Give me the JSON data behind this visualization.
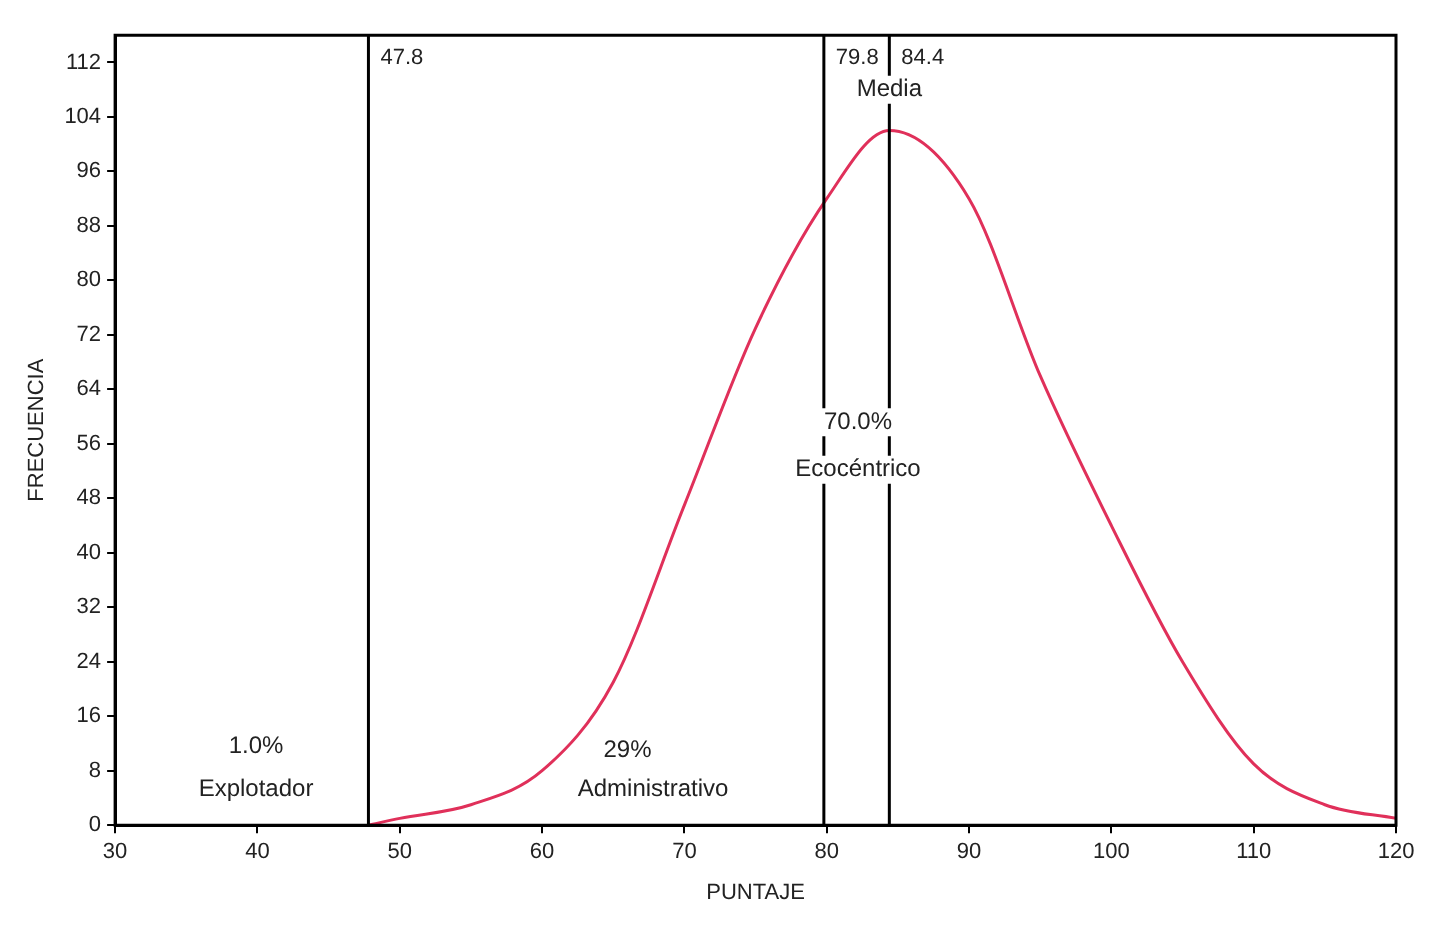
{
  "chart_data": {
    "type": "line",
    "xlabel": "PUNTAJE",
    "ylabel": "FRECUENCIA",
    "series": [
      {
        "color": "#e0305a",
        "x": [
          47.8,
          50,
          55,
          60,
          65,
          70,
          75,
          80,
          84.4,
          90,
          95,
          100,
          105,
          110,
          115,
          120
        ],
        "values": [
          0,
          1,
          3,
          8,
          21,
          47,
          73,
          92,
          102,
          92,
          66,
          44,
          24,
          9,
          3,
          1
        ]
      }
    ],
    "xlim": [
      30,
      120
    ],
    "xticks": [
      30,
      40,
      50,
      60,
      70,
      80,
      90,
      100,
      110,
      120
    ],
    "ylim": [
      0,
      116
    ],
    "yticks": [
      0,
      8,
      16,
      24,
      32,
      40,
      48,
      56,
      64,
      72,
      80,
      88,
      96,
      104,
      112
    ],
    "grid": false,
    "legend": false,
    "marker": "none",
    "line_style": "solid",
    "ref_lines": [
      {
        "axis": "x",
        "value": 47.8,
        "label": "47.8"
      },
      {
        "axis": "x",
        "value": 79.8,
        "label": "79.8"
      },
      {
        "axis": "x",
        "value": 84.4,
        "label": "84.4"
      }
    ],
    "annotations": [
      {
        "text": "Media",
        "x": 84.4,
        "y": 108
      },
      "1.0%",
      "Explotador",
      "29%",
      "Administrativo",
      "70.0%",
      "Ecocéntrico"
    ]
  }
}
